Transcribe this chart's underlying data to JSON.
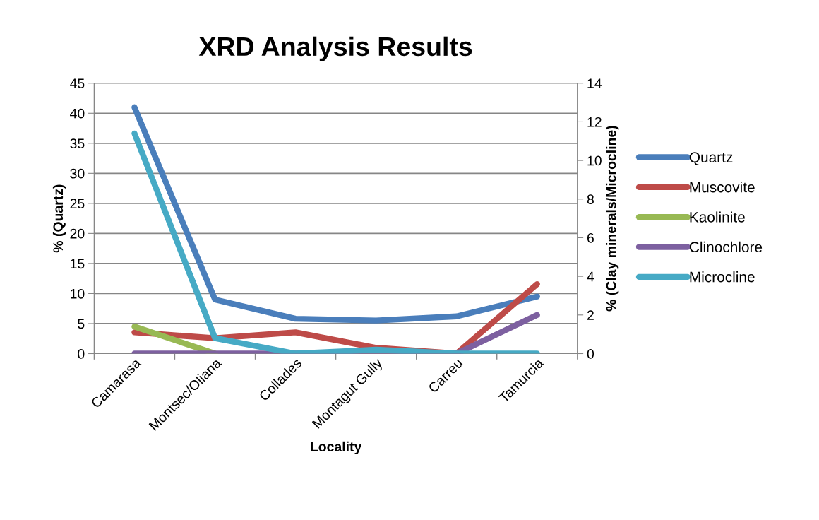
{
  "chart_data": {
    "type": "line",
    "title": "XRD Analysis Results",
    "xlabel": "Locality",
    "ylabel": "% (Quartz)",
    "y2label": "% (Clay minerals/Microcline)",
    "categories": [
      "Camarasa",
      "Montsec/Oliana",
      "Collades",
      "Montagut Gully",
      "Carreu",
      "Tamurcia"
    ],
    "series": [
      {
        "name": "Quartz",
        "color": "#4a7ebb",
        "values": [
          41.0,
          9.0,
          5.8,
          5.5,
          6.2,
          9.5
        ]
      },
      {
        "name": "Muscovite",
        "color": "#be4b48",
        "axis": "y2",
        "values": [
          1.1,
          0.8,
          1.1,
          0.3,
          0.0,
          3.6
        ]
      },
      {
        "name": "Kaolinite",
        "color": "#98b954",
        "axis": "y2",
        "values": [
          1.4,
          0.0,
          null,
          null,
          null,
          null
        ]
      },
      {
        "name": "Clinochlore",
        "color": "#7d60a0",
        "axis": "y2",
        "values": [
          0.0,
          0.0,
          0.0,
          0.0,
          0.0,
          2.0
        ]
      },
      {
        "name": "Microcline",
        "color": "#46aac5",
        "axis": "y2",
        "values": [
          11.4,
          0.8,
          0.0,
          0.2,
          0.0,
          0.0
        ]
      }
    ],
    "ylim": [
      0,
      45
    ],
    "yticks": [
      0,
      5,
      10,
      15,
      20,
      25,
      30,
      35,
      40,
      45
    ],
    "y2lim": [
      0,
      14
    ],
    "y2ticks": [
      0,
      2,
      4,
      6,
      8,
      10,
      12,
      14
    ],
    "grid": "y",
    "legend": "right",
    "marker": "none",
    "line_style": "solid"
  }
}
